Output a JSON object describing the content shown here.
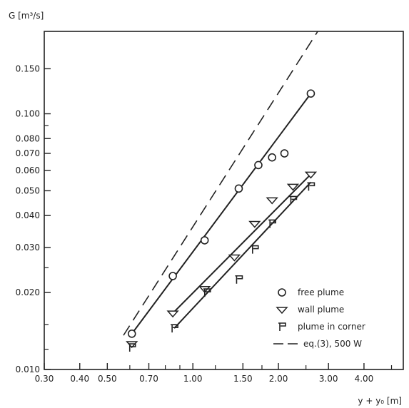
{
  "chart_data": {
    "type": "scatter",
    "xlabel": "y + y₀ [m]",
    "ylabel": "G [m³/s]",
    "x_scale": "log",
    "y_scale": "log",
    "xlim": [
      0.3,
      5.5
    ],
    "ylim": [
      0.01,
      0.21
    ],
    "x_ticks": [
      0.3,
      0.4,
      0.5,
      0.7,
      1.0,
      1.5,
      2.0,
      3.0,
      4.0
    ],
    "x_tick_labels": [
      "0.30",
      "0.40",
      "0.50",
      "0.70",
      "1.00",
      "1.50",
      "2.00",
      "3.00",
      "4.00"
    ],
    "x_minor_ticks": [
      0.6,
      0.8,
      0.9,
      1.2,
      1.75,
      2.5,
      5.0
    ],
    "y_ticks": [
      0.01,
      0.02,
      0.03,
      0.04,
      0.05,
      0.06,
      0.07,
      0.08,
      0.1,
      0.15
    ],
    "y_tick_labels": [
      "0.010",
      "0.020",
      "0.030",
      "0.040",
      "0.050",
      "0.060",
      "0.070",
      "0.080",
      "0.100",
      "0.150"
    ],
    "y_minor_ticks": [
      0.012,
      0.015,
      0.025,
      0.09
    ],
    "grid": false,
    "legend_position": "bottom-right",
    "series": [
      {
        "name": "free plume",
        "marker": "circle",
        "points": [
          [
            0.61,
            0.0138
          ],
          [
            0.85,
            0.0232
          ],
          [
            1.1,
            0.032
          ],
          [
            1.45,
            0.051
          ],
          [
            1.7,
            0.063
          ],
          [
            1.9,
            0.0675
          ],
          [
            2.1,
            0.07
          ],
          [
            2.6,
            0.12
          ]
        ],
        "fit": [
          [
            0.61,
            0.0138
          ],
          [
            2.6,
            0.12
          ]
        ]
      },
      {
        "name": "wall plume",
        "marker": "triangle-down",
        "points": [
          [
            0.61,
            0.0126
          ],
          [
            0.85,
            0.0166
          ],
          [
            1.1,
            0.0207
          ],
          [
            1.4,
            0.0275
          ],
          [
            1.65,
            0.0372
          ],
          [
            1.9,
            0.046
          ],
          [
            2.25,
            0.052
          ],
          [
            2.6,
            0.058
          ]
        ],
        "fit": [
          [
            0.85,
            0.0166
          ],
          [
            2.6,
            0.058
          ]
        ]
      },
      {
        "name": "plume in corner",
        "marker": "flag",
        "points": [
          [
            0.61,
            0.0122
          ],
          [
            0.86,
            0.0145
          ],
          [
            1.12,
            0.02
          ],
          [
            1.45,
            0.0225
          ],
          [
            1.65,
            0.0295
          ],
          [
            1.9,
            0.0372
          ],
          [
            2.25,
            0.046
          ],
          [
            2.6,
            0.052
          ]
        ],
        "fit": [
          [
            0.86,
            0.0145
          ],
          [
            2.6,
            0.054
          ]
        ]
      },
      {
        "name": "eq.(3), 500 W",
        "marker": "none",
        "style": "dashed",
        "line": [
          [
            0.57,
            0.0136
          ],
          [
            2.75,
            0.21
          ]
        ]
      }
    ],
    "colors": {
      "ink": "#222222",
      "background": "#ffffff"
    }
  }
}
